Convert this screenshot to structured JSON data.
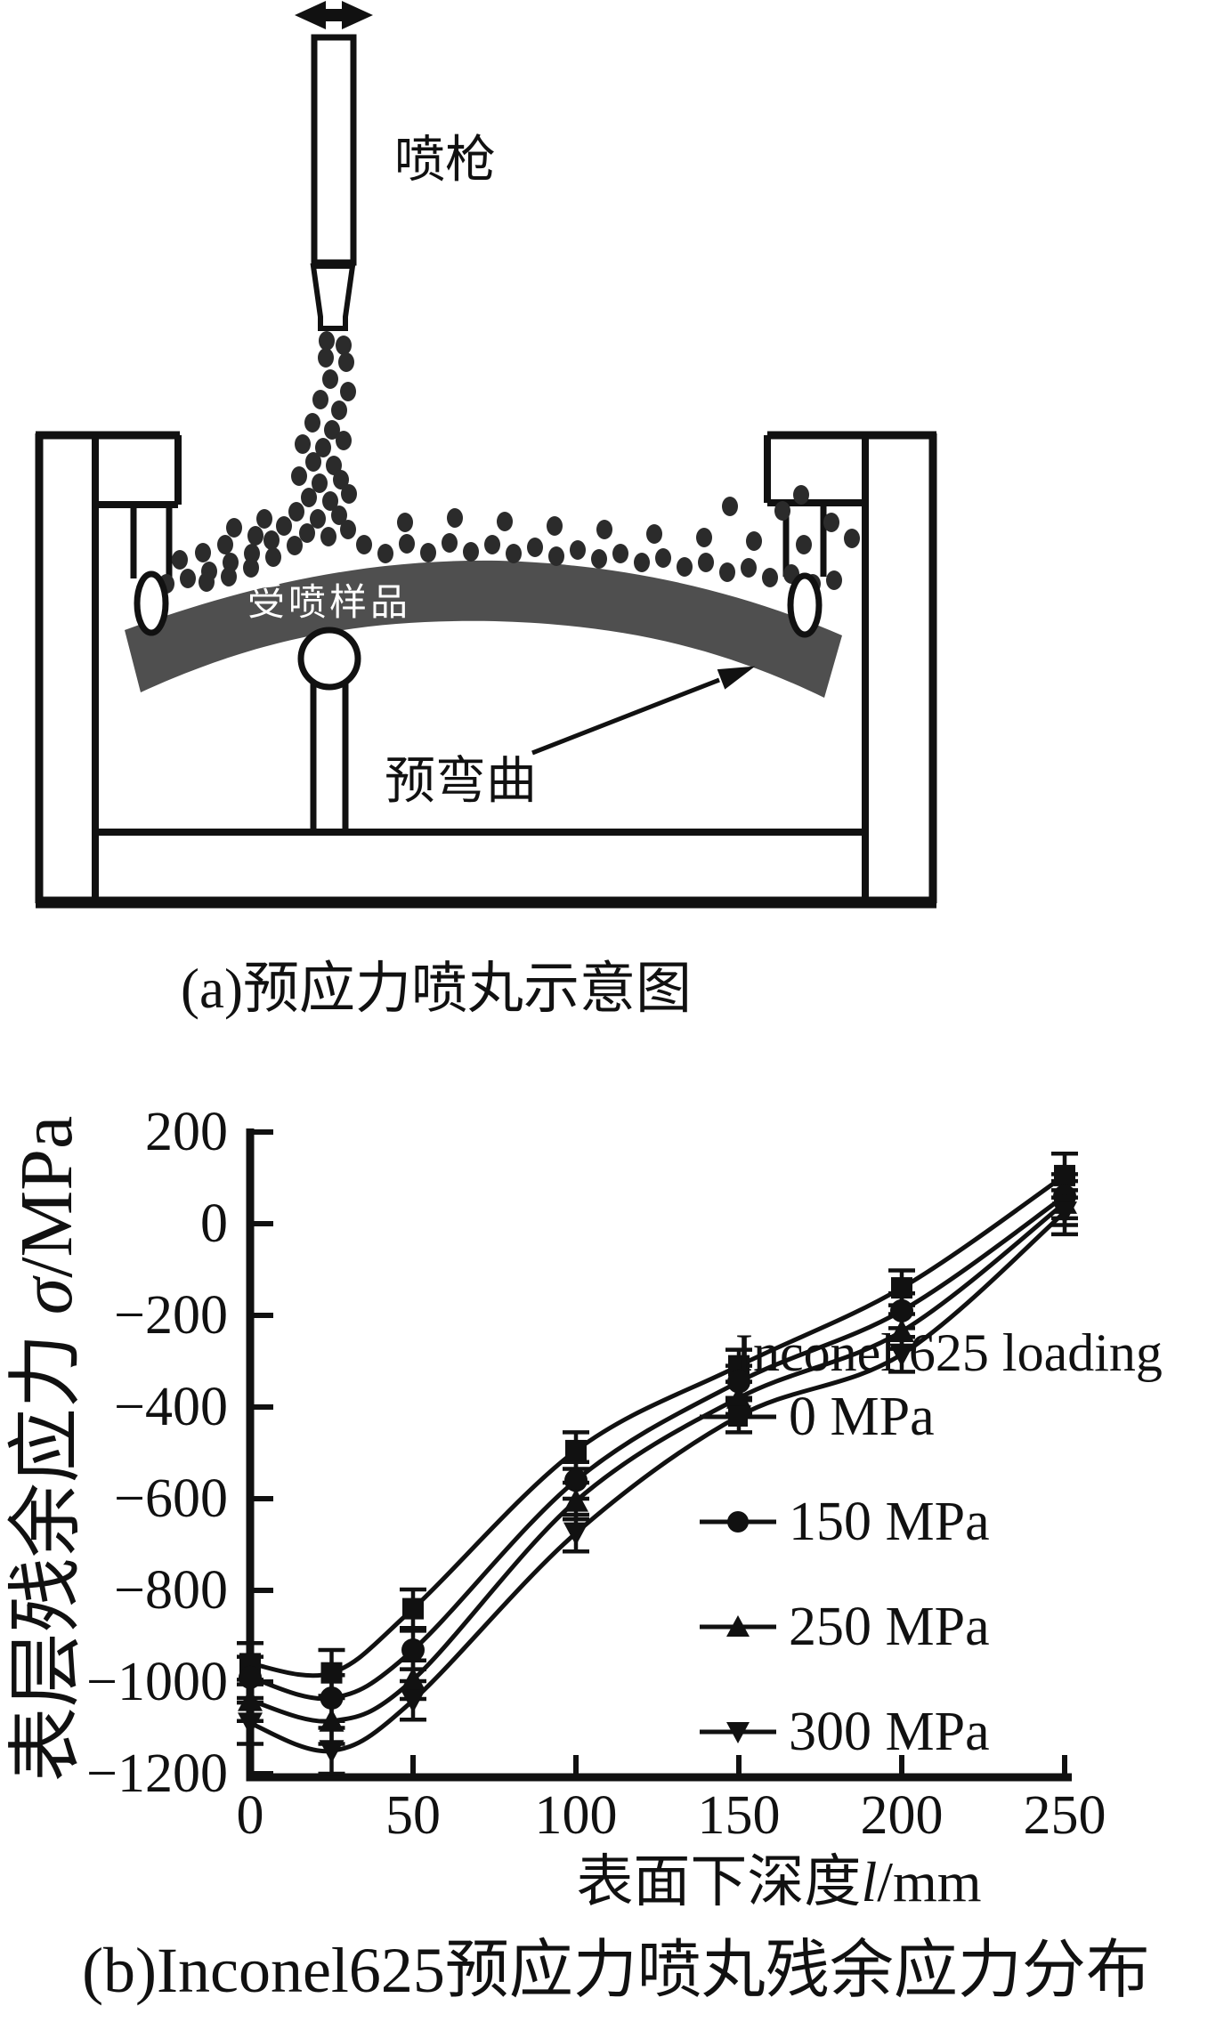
{
  "figure": {
    "panel_a": {
      "caption": "(a)预应力喷丸示意图",
      "gun_label": "喷枪",
      "sample_label": "受喷样品",
      "prebend_label": "预弯曲",
      "band_color": "#4f4f4f",
      "ink_color": "#111111",
      "shot_dots": [
        [
          367,
          383
        ],
        [
          386,
          388
        ],
        [
          366,
          402
        ],
        [
          389,
          407
        ],
        [
          371,
          426
        ],
        [
          391,
          440
        ],
        [
          360,
          449
        ],
        [
          381,
          461
        ],
        [
          351,
          475
        ],
        [
          373,
          483
        ],
        [
          340,
          499
        ],
        [
          363,
          503
        ],
        [
          386,
          495
        ],
        [
          352,
          519
        ],
        [
          375,
          523
        ],
        [
          336,
          535
        ],
        [
          359,
          543
        ],
        [
          383,
          539
        ],
        [
          347,
          559
        ],
        [
          371,
          563
        ],
        [
          392,
          555
        ],
        [
          333,
          575
        ],
        [
          357,
          583
        ],
        [
          381,
          579
        ],
        [
          319,
          591
        ],
        [
          345,
          599
        ],
        [
          369,
          603
        ],
        [
          391,
          595
        ],
        [
          305,
          607
        ],
        [
          331,
          613
        ],
        [
          283,
          622
        ],
        [
          259,
          632
        ],
        [
          235,
          642
        ],
        [
          211,
          650
        ],
        [
          187,
          656
        ],
        [
          163,
          660
        ],
        [
          307,
          626
        ],
        [
          282,
          638
        ],
        [
          257,
          648
        ],
        [
          232,
          654
        ],
        [
          253,
          612
        ],
        [
          228,
          621
        ],
        [
          202,
          629
        ],
        [
          287,
          602
        ],
        [
          263,
          593
        ],
        [
          297,
          583
        ],
        [
          409,
          612
        ],
        [
          433,
          622
        ],
        [
          457,
          611
        ],
        [
          481,
          621
        ],
        [
          505,
          610
        ],
        [
          529,
          620
        ],
        [
          553,
          612
        ],
        [
          577,
          622
        ],
        [
          601,
          615
        ],
        [
          625,
          625
        ],
        [
          649,
          618
        ],
        [
          673,
          628
        ],
        [
          697,
          622
        ],
        [
          721,
          632
        ],
        [
          745,
          627
        ],
        [
          769,
          637
        ],
        [
          793,
          632
        ],
        [
          817,
          643
        ],
        [
          841,
          638
        ],
        [
          865,
          649
        ],
        [
          889,
          645
        ],
        [
          913,
          656
        ],
        [
          937,
          652
        ],
        [
          455,
          587
        ],
        [
          511,
          582
        ],
        [
          567,
          586
        ],
        [
          623,
          591
        ],
        [
          679,
          595
        ],
        [
          735,
          600
        ],
        [
          791,
          604
        ],
        [
          847,
          608
        ],
        [
          903,
          612
        ],
        [
          934,
          587
        ],
        [
          957,
          605
        ],
        [
          879,
          574
        ],
        [
          820,
          569
        ],
        [
          900,
          556
        ]
      ]
    },
    "panel_b": {
      "caption": "(b)Inconel625预应力喷丸残余应力分布",
      "ylabel_text": "表层残余应力 ",
      "ylabel_symbol": "σ",
      "ylabel_unit": "/MPa",
      "xlabel_text": "表面下深度",
      "xlabel_symbol": "l",
      "xlabel_unit": "/mm",
      "legend_title": "Inconel 625 loading"
    }
  },
  "chart_data": {
    "type": "line",
    "title": "",
    "xlabel": "表面下深度 l/mm",
    "ylabel": "表层残余应力 σ/MPa",
    "legend_title": "Inconel 625 loading",
    "legend_position": "inside-lower-right",
    "grid": false,
    "xlim": [
      0,
      250
    ],
    "ylim": [
      -1200,
      200
    ],
    "x_ticks": [
      0,
      50,
      100,
      150,
      200,
      250
    ],
    "y_ticks": [
      200,
      0,
      -200,
      -400,
      -600,
      -800,
      -1000,
      -1200
    ],
    "x": [
      0,
      25,
      50,
      100,
      150,
      200,
      250
    ],
    "series": [
      {
        "name": "0 MPa",
        "marker": "square",
        "values": [
          -960,
          -980,
          -840,
          -495,
          -310,
          -140,
          105
        ]
      },
      {
        "name": "150 MPa",
        "marker": "circle",
        "values": [
          -990,
          -1035,
          -930,
          -560,
          -345,
          -190,
          60
        ]
      },
      {
        "name": "250 MPa",
        "marker": "triangle-up",
        "values": [
          -1040,
          -1085,
          -995,
          -605,
          -380,
          -235,
          45
        ]
      },
      {
        "name": "300 MPa",
        "marker": "triangle-down",
        "values": [
          -1090,
          -1150,
          -1040,
          -675,
          -420,
          -285,
          25
        ]
      }
    ],
    "error_bars": [
      45,
      50,
      42,
      40,
      35,
      38,
      48
    ]
  }
}
